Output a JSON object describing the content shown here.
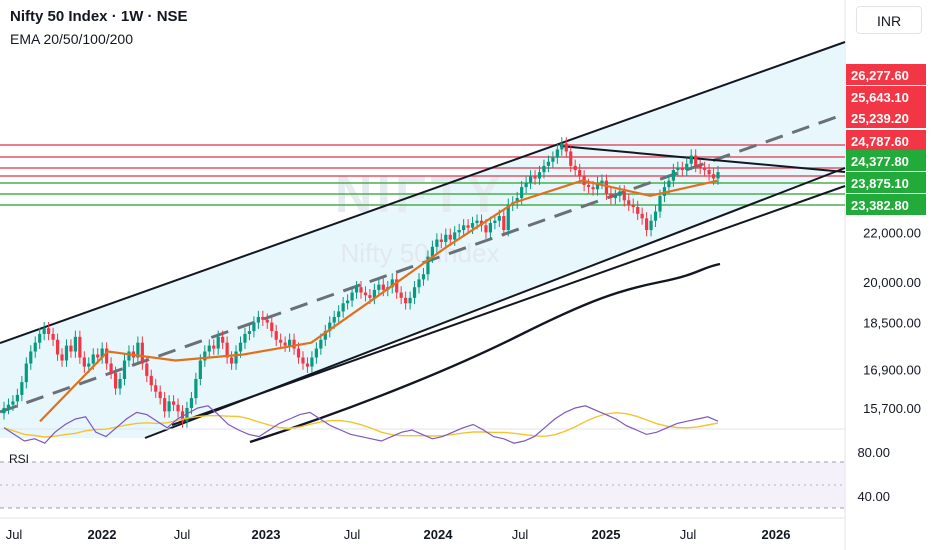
{
  "header": {
    "title": "Nifty 50 Index · 1W · NSE",
    "indicators": "EMA 20/50/100/200",
    "currency": "INR"
  },
  "watermark": {
    "symbol": "NIFTY",
    "name": "Nifty 50 Index"
  },
  "colors": {
    "channel_fill": "#e3f6fb",
    "resistance": "#e25563",
    "support": "#4caf50",
    "ema": "#e0701e",
    "rsi_line": "#7e57c2",
    "rsi_ma": "#f4c430"
  },
  "chart_data": [
    {
      "type": "candlestick",
      "title": "",
      "x_axis": {
        "tick_labels": [
          "Jul",
          "2022",
          "Jul",
          "2023",
          "Jul",
          "2024",
          "Jul",
          "2025",
          "Jul",
          "2026"
        ],
        "range": [
          "2021-06",
          "2026-06"
        ]
      },
      "y_axis": {
        "scale": "log",
        "range": [
          14800,
          31000
        ],
        "tick_labels": [
          "15,700.00",
          "16,900.00",
          "18,500.00",
          "20,000.00",
          "22,000.00"
        ]
      },
      "price_levels": {
        "resistance": [
          "26,277.60",
          "25,643.10",
          "25,239.20",
          "24,787.60"
        ],
        "support": [
          "24,377.80",
          "23,875.10",
          "23,382.80"
        ]
      },
      "series": [
        {
          "name": "Nifty 50 Index",
          "values_weekly_close": [
            15700,
            15800,
            15900,
            16100,
            16500,
            17100,
            17500,
            17800,
            18100,
            18300,
            18100,
            17900,
            17400,
            17200,
            17700,
            17500,
            18000,
            17300,
            17000,
            17100,
            17400,
            17300,
            17600,
            17100,
            16800,
            16300,
            16600,
            17200,
            17500,
            17300,
            17800,
            17100,
            16700,
            16400,
            16200,
            16000,
            15600,
            15900,
            15800,
            15600,
            15300,
            15700,
            16000,
            16600,
            17200,
            17500,
            17700,
            17600,
            18000,
            17800,
            17300,
            17100,
            17500,
            17800,
            18100,
            18200,
            18500,
            18700,
            18600,
            18500,
            18200,
            17900,
            17800,
            17700,
            17900,
            17600,
            17300,
            17100,
            17000,
            17300,
            17600,
            17900,
            18200,
            18500,
            18700,
            18900,
            19200,
            19300,
            19600,
            19800,
            19600,
            19500,
            19400,
            19700,
            19900,
            19700,
            19800,
            20100,
            19600,
            19400,
            19200,
            19400,
            19800,
            20100,
            20300,
            21000,
            21400,
            21700,
            21600,
            21900,
            21700,
            22000,
            22100,
            22300,
            22200,
            22400,
            22500,
            22300,
            22000,
            22400,
            22500,
            22700,
            22100,
            23200,
            23300,
            23500,
            24000,
            24200,
            24500,
            24400,
            24700,
            25000,
            25200,
            25400,
            25800,
            26100,
            25700,
            25000,
            24800,
            24500,
            24100,
            24000,
            23900,
            24200,
            24300,
            23700,
            23500,
            23600,
            23800,
            23400,
            23200,
            23100,
            22800,
            22600,
            22100,
            22500,
            22900,
            23600,
            24000,
            24300,
            24800,
            24900,
            24800,
            25100,
            25500,
            25000,
            24900,
            24800,
            24600,
            24400,
            24700
          ]
        }
      ],
      "ema": {
        "name": "EMA",
        "values": [
          15300,
          17500,
          17200,
          17400,
          17800,
          19500,
          21400,
          23300,
          24300,
          23600,
          24300
        ]
      },
      "trendlines": [
        "ascending channel upper",
        "ascending channel lower",
        "channel midline (dashed)",
        "descending resistance from peak"
      ]
    },
    {
      "type": "line",
      "title": "RSI",
      "y_axis": {
        "range": [
          30,
          90
        ],
        "tick_labels": [
          "80.00",
          "40.00"
        ],
        "bands": [
          70,
          30
        ]
      },
      "series": [
        {
          "name": "RSI",
          "values": [
            58,
            64,
            70,
            68,
            72,
            62,
            55,
            50,
            48,
            62,
            66,
            58,
            50,
            44,
            46,
            52,
            58,
            50,
            45,
            40,
            38,
            46,
            55,
            60,
            64,
            66,
            60,
            54,
            50,
            46,
            44,
            50,
            56,
            60,
            64,
            66,
            68,
            70,
            66,
            62,
            60,
            64,
            68,
            66,
            62,
            58,
            55,
            60,
            66,
            68,
            72,
            70,
            66,
            58,
            50,
            44,
            40,
            38,
            42,
            46,
            50,
            56,
            60,
            64,
            62,
            58,
            54,
            52,
            50,
            48,
            52
          ]
        }
      ]
    }
  ]
}
